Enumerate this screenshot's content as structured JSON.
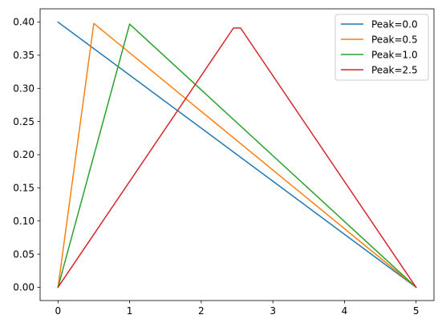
{
  "chart_data": {
    "type": "line",
    "title": "",
    "xlabel": "",
    "ylabel": "",
    "xlim": [
      -0.25,
      5.25
    ],
    "ylim": [
      -0.02,
      0.42
    ],
    "x_ticks": [
      0,
      1,
      2,
      3,
      4,
      5
    ],
    "x_tick_labels": [
      "0",
      "1",
      "2",
      "3",
      "4",
      "5"
    ],
    "y_ticks": [
      0.0,
      0.05,
      0.1,
      0.15,
      0.2,
      0.25,
      0.3,
      0.35,
      0.4
    ],
    "y_tick_labels": [
      "0.00",
      "0.05",
      "0.10",
      "0.15",
      "0.20",
      "0.25",
      "0.30",
      "0.35",
      "0.40"
    ],
    "grid": false,
    "legend_position": "top-right",
    "series": [
      {
        "name": "Peak=0.0",
        "color": "#1f77b4",
        "x": [
          0,
          5
        ],
        "y": [
          0.4,
          0.0
        ]
      },
      {
        "name": "Peak=0.5",
        "color": "#ff7f0e",
        "x": [
          0,
          0.5,
          5
        ],
        "y": [
          0.0,
          0.398,
          0.0
        ]
      },
      {
        "name": "Peak=1.0",
        "color": "#2ca02c",
        "x": [
          0,
          1.0,
          5
        ],
        "y": [
          0.0,
          0.397,
          0.0
        ]
      },
      {
        "name": "Peak=2.5",
        "color": "#d62728",
        "x": [
          0,
          2.45,
          2.55,
          5
        ],
        "y": [
          0.0,
          0.391,
          0.391,
          0.0
        ]
      }
    ]
  }
}
